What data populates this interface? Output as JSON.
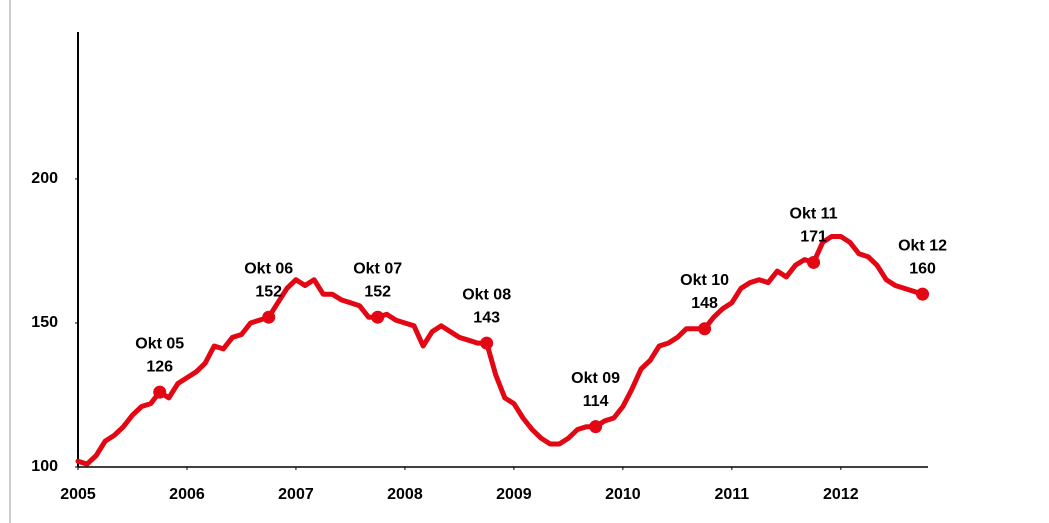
{
  "chart_data": {
    "type": "line",
    "x": [
      2005,
      2005.0833,
      2005.1667,
      2005.25,
      2005.3333,
      2005.4167,
      2005.5,
      2005.5833,
      2005.6667,
      2005.75,
      2005.8333,
      2005.9167,
      2006,
      2006.0833,
      2006.1667,
      2006.25,
      2006.3333,
      2006.4167,
      2006.5,
      2006.5833,
      2006.6667,
      2006.75,
      2006.8333,
      2006.9167,
      2007,
      2007.0833,
      2007.1667,
      2007.25,
      2007.3333,
      2007.4167,
      2007.5,
      2007.5833,
      2007.6667,
      2007.75,
      2007.8333,
      2007.9167,
      2008,
      2008.0833,
      2008.1667,
      2008.25,
      2008.3333,
      2008.4167,
      2008.5,
      2008.5833,
      2008.6667,
      2008.75,
      2008.8333,
      2008.9167,
      2009,
      2009.0833,
      2009.1667,
      2009.25,
      2009.3333,
      2009.4167,
      2009.5,
      2009.5833,
      2009.6667,
      2009.75,
      2009.8333,
      2009.9167,
      2010,
      2010.0833,
      2010.1667,
      2010.25,
      2010.3333,
      2010.4167,
      2010.5,
      2010.5833,
      2010.6667,
      2010.75,
      2010.8333,
      2010.9167,
      2011,
      2011.0833,
      2011.1667,
      2011.25,
      2011.3333,
      2011.4167,
      2011.5,
      2011.5833,
      2011.6667,
      2011.75,
      2011.8333,
      2011.9167,
      2012,
      2012.0833,
      2012.1667,
      2012.25,
      2012.3333,
      2012.4167,
      2012.5,
      2012.5833,
      2012.6667,
      2012.75
    ],
    "series": [
      {
        "color": "#e30613",
        "values": [
          102,
          101,
          104,
          109,
          111,
          114,
          118,
          121,
          122,
          126,
          124,
          129,
          131,
          133,
          136,
          142,
          141,
          145,
          146,
          150,
          151,
          152,
          157,
          162,
          165,
          163,
          165,
          160,
          160,
          158,
          157,
          156,
          152,
          152,
          153,
          151,
          150,
          149,
          142,
          147,
          149,
          147,
          145,
          144,
          143,
          143,
          132,
          124,
          122,
          117,
          113,
          110,
          108,
          108,
          110,
          113,
          114,
          114,
          116,
          117,
          121,
          127,
          134,
          137,
          142,
          143,
          145,
          148,
          148,
          148,
          152,
          155,
          157,
          162,
          164,
          165,
          164,
          168,
          166,
          170,
          172,
          171,
          178,
          180,
          180,
          178,
          174,
          173,
          170,
          165,
          163,
          162,
          161,
          160
        ]
      }
    ],
    "annotations": [
      {
        "x": 2005.75,
        "label": "Okt 05",
        "value": 126
      },
      {
        "x": 2006.75,
        "label": "Okt 06",
        "value": 152
      },
      {
        "x": 2007.75,
        "label": "Okt 07",
        "value": 152
      },
      {
        "x": 2008.75,
        "label": "Okt 08",
        "value": 143
      },
      {
        "x": 2009.75,
        "label": "Okt 09",
        "value": 114
      },
      {
        "x": 2010.75,
        "label": "Okt 10",
        "value": 148
      },
      {
        "x": 2011.75,
        "label": "Okt 11",
        "value": 171
      },
      {
        "x": 2012.75,
        "label": "Okt 12",
        "value": 160
      }
    ],
    "xlim": [
      2005,
      2012.8
    ],
    "xticks": [
      2005,
      2006,
      2007,
      2008,
      2009,
      2010,
      2011,
      2012
    ],
    "ylim": [
      100,
      251
    ],
    "yticks": [
      100,
      150,
      200
    ],
    "grid": false
  }
}
